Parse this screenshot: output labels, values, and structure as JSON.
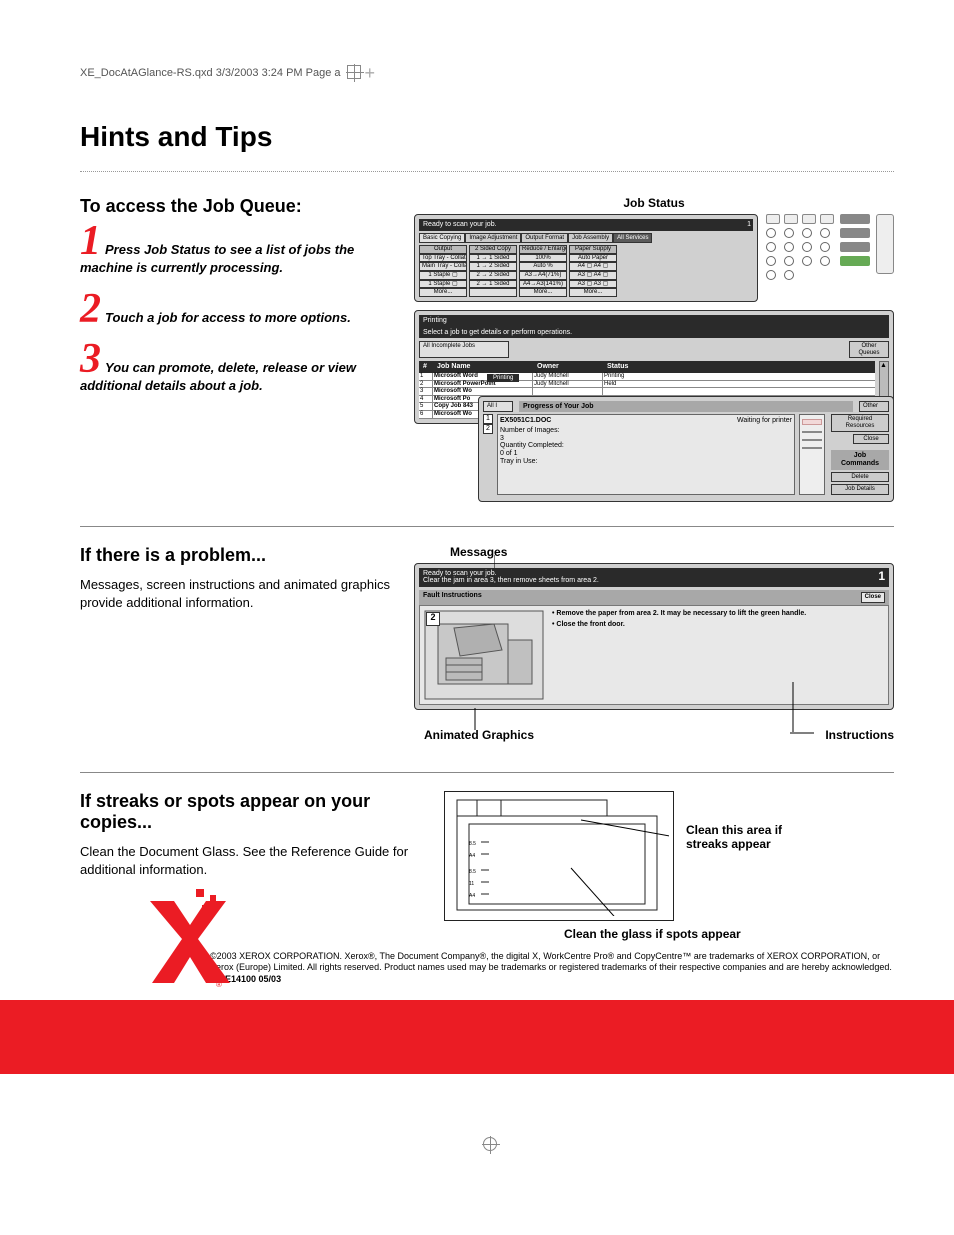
{
  "slug": "XE_DocAtAGlance-RS.qxd  3/3/2003  3:24 PM  Page a",
  "title": "Hints and Tips",
  "section1": {
    "heading": "To access the Job Queue:",
    "steps": [
      "Press Job Status to see a list of jobs the machine is currently processing.",
      "Touch a job for access to more options.",
      "You can promote, delete, release or view additional details about a job."
    ],
    "fig_label": "Job Status",
    "control_panel": {
      "prompt": "Ready to scan your job.",
      "tabs": [
        "Basic Copying",
        "Image Adjustment",
        "Output Format",
        "Job Assembly",
        "All Services"
      ],
      "col_headers": [
        "Output",
        "2 Sided Copy",
        "Reduce / Enlarge",
        "Paper Supply"
      ],
      "cells": [
        [
          "Top Tray - Collated",
          "1 → 1 Sided",
          "100%",
          "Auto Paper"
        ],
        [
          "Main Tray - Collated",
          "1 → 2 Sided",
          "Auto %",
          "A4 ▢ A4 ▢"
        ],
        [
          "1 Staple ▢",
          "2 → 2 Sided",
          "A3→A4(71%)",
          "A3 ▢ A4 ▢"
        ],
        [
          "1 Staple ▢",
          "2 → 1 Sided",
          "A4→A3(141%)",
          "A3 ▢ A3 ▢"
        ],
        [
          "More...",
          "",
          "More...",
          "More..."
        ]
      ]
    },
    "queue1": {
      "title": "Printing",
      "subtitle": "Select a job to get details or perform operations.",
      "scope": "All Incomplete Jobs",
      "other": "Other Queues",
      "columns": [
        "#",
        "Job Name",
        "Owner",
        "Status"
      ],
      "rows": [
        [
          "1",
          "Microsoft Word",
          "Judy Mitchell",
          "Printing"
        ],
        [
          "2",
          "Microsoft PowerPoint",
          "Judy Mitchell",
          "Held"
        ],
        [
          "3",
          "Microsoft Wo",
          "",
          ""
        ],
        [
          "4",
          "Microsoft Po",
          "",
          ""
        ],
        [
          "5",
          "Copy Job 843",
          "",
          ""
        ],
        [
          "6",
          "Microsoft Wo",
          "",
          ""
        ]
      ],
      "overlay_title": "Printing"
    },
    "queue2": {
      "title_row": "All I",
      "progress_label": "Progress of Your Job",
      "other": "Other",
      "req_res": "Required Resources",
      "close": "Close",
      "job_name": "EX5051C1.DOC",
      "job_status": "Waiting for printer",
      "detail_lines": [
        "Number of Images:",
        "3",
        "Quantity Completed:",
        "0 of 1",
        "Tray in Use:"
      ],
      "buttons": [
        "Job Commands",
        "Delete",
        "Job Details"
      ]
    }
  },
  "section2": {
    "heading": "If there is a problem...",
    "body": "Messages, screen instructions and animated graphics provide additional information.",
    "labels": {
      "messages": "Messages",
      "anim": "Animated Graphics",
      "instr": "Instructions"
    },
    "fault_panel": {
      "line1": "Ready to scan your job.",
      "line2": "Clear the jam in area 3, then remove sheets from area 2.",
      "count": "1",
      "header": "Fault Instructions",
      "close": "Close",
      "step_num": "2",
      "bullets": [
        "Remove the paper from area 2.  It may be necessary to lift the green handle.",
        "Close the front door."
      ]
    }
  },
  "section3": {
    "heading": "If streaks or spots appear on your copies...",
    "body": "Clean the Document Glass. See the Reference Guide for additional information.",
    "callouts": {
      "streaks": "Clean this area if streaks appear",
      "spots": "Clean the glass if spots appear"
    },
    "scale_marks": [
      "8.5",
      "A4",
      "8.5",
      "11",
      "A4"
    ]
  },
  "footer": {
    "copyright": "©2003 XEROX CORPORATION.  Xerox®, The Document Company®, the digital X, WorkCentre Pro® and CopyCentre™ are trademarks of XEROX CORPORATION, or Xerox (Europe) Limited. All rights reserved. Product names used may be trademarks or registered trademarks of their respective companies and are hereby acknowledged.",
    "partno": "604E14100  05/03"
  },
  "colors": {
    "red": "#eb1c24",
    "panel_grey": "#d0d0d0",
    "dark": "#2a2a2a"
  }
}
